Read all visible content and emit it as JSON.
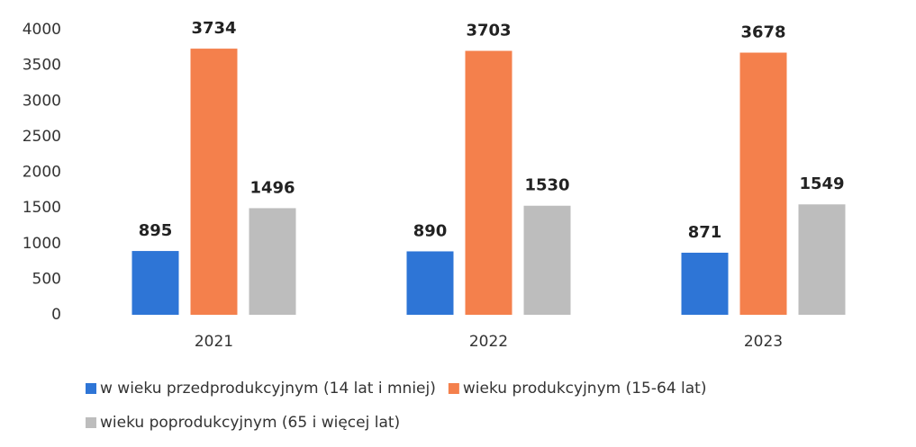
{
  "chart_data": {
    "type": "bar",
    "categories": [
      "2021",
      "2022",
      "2023"
    ],
    "series": [
      {
        "name": "w wieku przedprodukcyjnym (14 lat i mniej)",
        "color": "#2e75d6",
        "values": [
          895,
          890,
          871
        ]
      },
      {
        "name": "wieku produkcyjnym (15-64 lat)",
        "color": "#f4804c",
        "values": [
          3734,
          3703,
          3678
        ]
      },
      {
        "name": "wieku poprodukcyjnym (65 i więcej lat)",
        "color": "#bdbdbd",
        "values": [
          1496,
          1530,
          1549
        ]
      }
    ],
    "ylim": [
      0,
      4000
    ],
    "yticks": [
      0,
      500,
      1000,
      1500,
      2000,
      2500,
      3000,
      3500,
      4000
    ],
    "grid": false,
    "legend": "bottom"
  }
}
